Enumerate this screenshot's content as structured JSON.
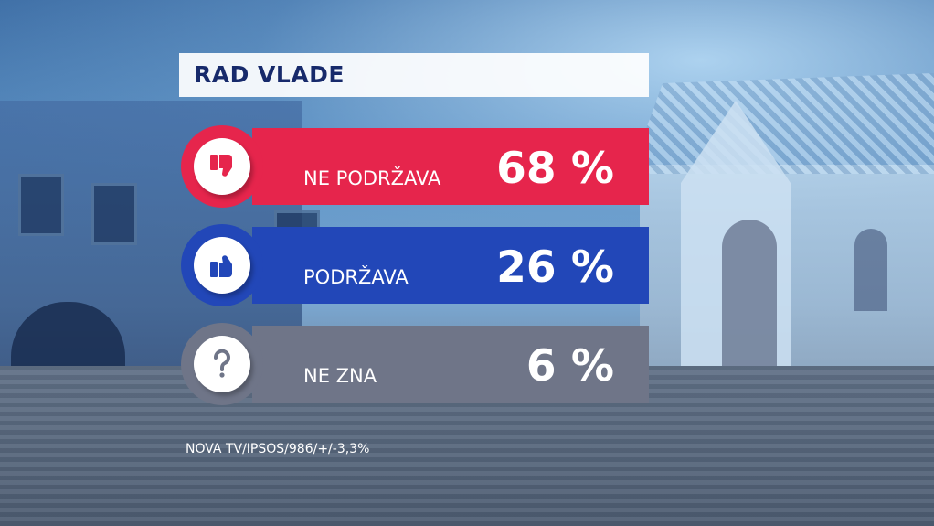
{
  "title": "RAD VLADE",
  "source": "NOVA TV/IPSOS/986/+/-3,3%",
  "colors": {
    "title_text": "#172a6b",
    "no_support": "#e6254c",
    "support": "#2247b8",
    "dont_know": "#6f7588"
  },
  "chart_data": {
    "type": "bar",
    "title": "RAD VLADE",
    "categories": [
      "NE PODRŽAVA",
      "PODRŽAVA",
      "NE ZNA"
    ],
    "values": [
      68,
      26,
      6
    ],
    "value_labels": [
      "68 %",
      "26 %",
      "6 %"
    ],
    "icons": [
      "thumbs-down-icon",
      "thumbs-up-icon",
      "question-mark-icon"
    ],
    "unit": "%"
  }
}
